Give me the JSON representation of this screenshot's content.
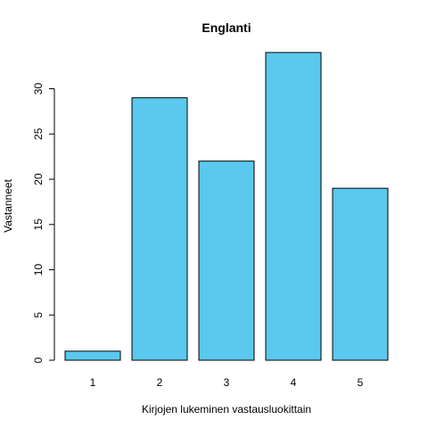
{
  "chart_data": {
    "type": "bar",
    "title": "Englanti",
    "xlabel": "Kirjojen lukeminen vastausluokittain",
    "ylabel": "Vastanneet",
    "categories": [
      "1",
      "2",
      "3",
      "4",
      "5"
    ],
    "values": [
      1,
      29,
      22,
      34,
      19
    ],
    "ylim": [
      0,
      34
    ],
    "yticks": [
      "0",
      "5",
      "10",
      "15",
      "20",
      "25",
      "30"
    ],
    "bar_color": "#5BC8EE",
    "grid": false,
    "legend": "none"
  }
}
